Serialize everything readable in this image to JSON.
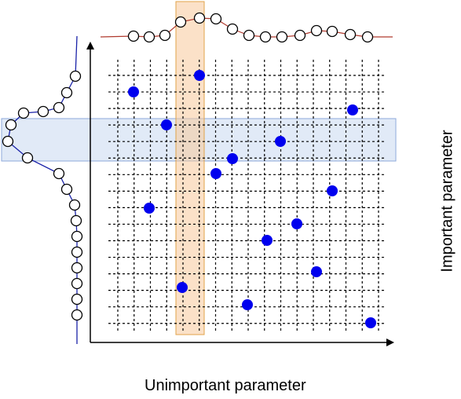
{
  "labels": {
    "x_axis": "Unimportant parameter",
    "y_axis": "Important parameter"
  },
  "colors": {
    "grid": "#000000",
    "point": "#0000ee",
    "top_curve": "#b03a2e",
    "left_curve": "#1a22a8",
    "vertical_band": "#f7c99a",
    "horizontal_band": "#c8d8f0"
  },
  "grid": {
    "columns": 17,
    "rows": 16
  },
  "points": [
    [
      170,
      117
    ],
    [
      254,
      96
    ],
    [
      212,
      159
    ],
    [
      449,
      140
    ],
    [
      357,
      180
    ],
    [
      296,
      202
    ],
    [
      275,
      221
    ],
    [
      423,
      243
    ],
    [
      190,
      265
    ],
    [
      378,
      285
    ],
    [
      340,
      306
    ],
    [
      403,
      346
    ],
    [
      232,
      366
    ],
    [
      315,
      388
    ],
    [
      472,
      411
    ]
  ],
  "top_curve_nodes": [
    [
      170,
      46
    ],
    [
      190,
      47
    ],
    [
      210,
      45
    ],
    [
      230,
      28
    ],
    [
      254,
      23
    ],
    [
      275,
      24
    ],
    [
      296,
      37
    ],
    [
      317,
      45
    ],
    [
      338,
      47
    ],
    [
      359,
      47
    ],
    [
      382,
      45
    ],
    [
      403,
      39
    ],
    [
      423,
      40
    ],
    [
      446,
      44
    ],
    [
      468,
      47
    ]
  ],
  "left_curve_nodes": [
    [
      96,
      97
    ],
    [
      85,
      118
    ],
    [
      75,
      137
    ],
    [
      55,
      142
    ],
    [
      30,
      144
    ],
    [
      14,
      159
    ],
    [
      10,
      180
    ],
    [
      35,
      201
    ],
    [
      75,
      221
    ],
    [
      85,
      241
    ],
    [
      95,
      261
    ],
    [
      97,
      281
    ],
    [
      98,
      301
    ],
    [
      98,
      321
    ],
    [
      98,
      341
    ],
    [
      98,
      361
    ],
    [
      98,
      381
    ],
    [
      98,
      401
    ]
  ]
}
